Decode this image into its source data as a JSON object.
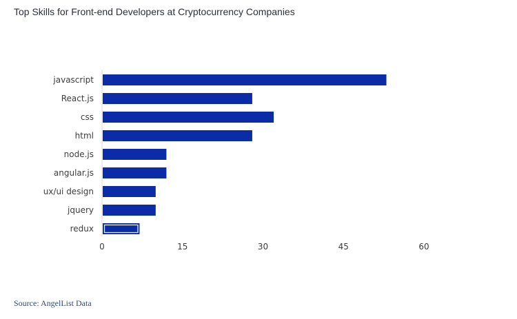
{
  "source": "Source: AngelList Data",
  "colors": {
    "bar": "#0b2ca6",
    "highlight_outline": "#ffffff",
    "axis": "#d9d9d9",
    "title": "#2b2f3a",
    "source": "#2d4a7a"
  },
  "chart_data": {
    "type": "bar",
    "orientation": "horizontal",
    "title": "Top Skills for Front-end Developers at Cryptocurrency Companies",
    "xlabel": "",
    "ylabel": "",
    "categories": [
      "javascript",
      "React.js",
      "css",
      "html",
      "node.js",
      "angular.js",
      "ux/ui design",
      "jquery",
      "redux"
    ],
    "values": [
      53,
      28,
      32,
      28,
      12,
      12,
      10,
      10,
      7
    ],
    "highlighted_category": "redux",
    "xlim": [
      0,
      60
    ],
    "xticks": [
      "0",
      "15",
      "30",
      "45",
      "60"
    ],
    "grid": false,
    "legend": "none"
  }
}
